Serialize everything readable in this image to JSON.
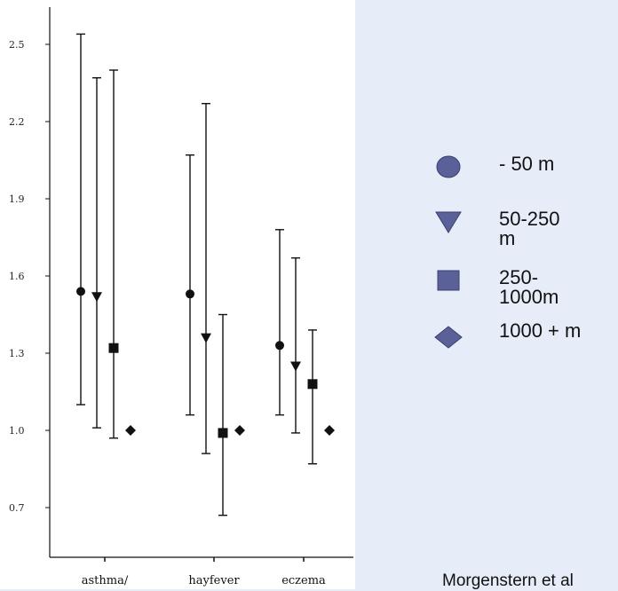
{
  "chart_data": {
    "type": "errorbar",
    "categories": [
      "asthma/",
      "hayfever",
      "eczema"
    ],
    "yticks": [
      "2.5",
      "2.2",
      "1.9",
      "1.6",
      "1.3",
      "1.0",
      "0.7"
    ],
    "ylim": [
      0.5,
      2.65
    ],
    "series": [
      {
        "name": "- 50 m",
        "marker": "circle",
        "values": [
          1.54,
          1.53,
          1.33
        ],
        "lower": [
          1.1,
          1.06,
          1.06
        ],
        "upper": [
          2.54,
          2.07,
          1.78
        ]
      },
      {
        "name": "50-250\nm",
        "marker": "triangle-down",
        "values": [
          1.52,
          1.36,
          1.25
        ],
        "lower": [
          1.01,
          0.91,
          0.99
        ],
        "upper": [
          2.37,
          2.27,
          1.67
        ]
      },
      {
        "name": "250-\n1000m",
        "marker": "square",
        "values": [
          1.32,
          0.99,
          1.18
        ],
        "lower": [
          0.97,
          0.67,
          0.87
        ],
        "upper": [
          2.4,
          1.45,
          1.39
        ]
      },
      {
        "name": "1000 + m",
        "marker": "diamond",
        "values": [
          1.0,
          1.0,
          1.0
        ],
        "lower": [
          1.0,
          1.0,
          1.0
        ],
        "upper": [
          1.0,
          1.0,
          1.0
        ]
      }
    ],
    "legend_position": "right",
    "grid": false
  },
  "legend_marker_color": "#5a6098",
  "legend_marker_stroke": "#3a3f70",
  "source_note": "Morgenstern et al"
}
